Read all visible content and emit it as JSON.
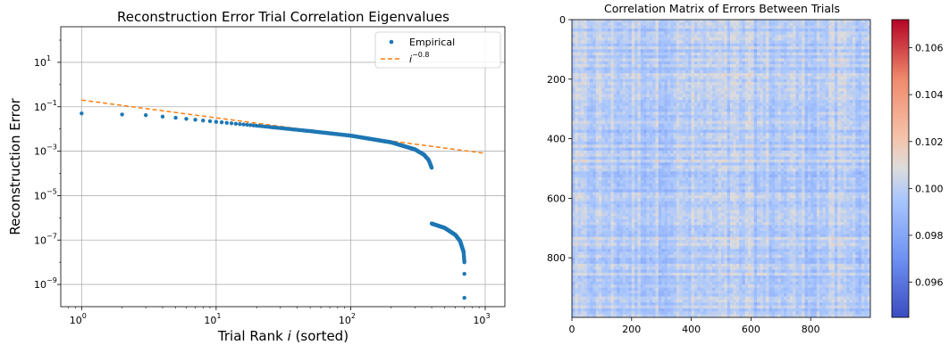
{
  "chart_data": [
    {
      "type": "scatter",
      "title": "Reconstruction Error Trial Correlation Eigenvalues",
      "xlabel": "Trial Rank",
      "xlabel_var": "i",
      "xlabel_suffix": "(sorted)",
      "ylabel": "Reconstruction Error",
      "xscale": "log",
      "yscale": "log",
      "xlim": [
        0.7,
        1400
      ],
      "ylim": [
        1e-10,
        400.0
      ],
      "x_tick_values": [
        1,
        10,
        100,
        1000
      ],
      "y_tick_values": [
        1e-09,
        1e-07,
        1e-05,
        0.001,
        0.1,
        10.0
      ],
      "x_tick_labels": [
        {
          "base": "10",
          "exp": "0"
        },
        {
          "base": "10",
          "exp": "1"
        },
        {
          "base": "10",
          "exp": "2"
        },
        {
          "base": "10",
          "exp": "3"
        }
      ],
      "y_tick_labels": [
        {
          "base": "10",
          "exp": "−9"
        },
        {
          "base": "10",
          "exp": "−7"
        },
        {
          "base": "10",
          "exp": "−5"
        },
        {
          "base": "10",
          "exp": "−3"
        },
        {
          "base": "10",
          "exp": "−1"
        },
        {
          "base": "10",
          "exp": "1"
        }
      ],
      "grid": true,
      "legend_position": "top-right",
      "series": [
        {
          "name": "Empirical",
          "style": "points",
          "color": "#1f77b4",
          "segments": [
            {
              "x_start": 1,
              "x_end": 400,
              "y_anchors": [
                [
                  1,
                  0.05
                ],
                [
                  2,
                  0.045
                ],
                [
                  3,
                  0.042
                ],
                [
                  5,
                  0.032
                ],
                [
                  10,
                  0.021
                ],
                [
                  20,
                  0.014
                ],
                [
                  50,
                  0.008
                ],
                [
                  100,
                  0.005
                ],
                [
                  200,
                  0.0025
                ],
                [
                  300,
                  0.0012
                ],
                [
                  350,
                  0.0007
                ],
                [
                  380,
                  0.0004
                ],
                [
                  400,
                  0.00018
                ]
              ]
            },
            {
              "x_start": 400,
              "x_end": 700,
              "y_anchors": [
                [
                  400,
                  5.5e-07
                ],
                [
                  500,
                  3.5e-07
                ],
                [
                  600,
                  1.7e-07
                ],
                [
                  650,
                  9e-08
                ],
                [
                  690,
                  3e-08
                ],
                [
                  700,
                  1e-08
                ]
              ]
            }
          ],
          "outliers": [
            [
              700,
              3e-09
            ],
            [
              700,
              2.5e-10
            ]
          ]
        },
        {
          "name": "i^−0.8",
          "legend_base": "i",
          "legend_exp": "−0.8",
          "style": "dashed",
          "color": "#ff7f0e",
          "coef": 0.2,
          "exponent": -0.8,
          "x_range": [
            1,
            1000
          ]
        }
      ]
    },
    {
      "type": "heatmap",
      "title": "Correlation Matrix of Errors Between Trials",
      "size": 1000,
      "x_ticks": [
        "0",
        "200",
        "400",
        "600",
        "800"
      ],
      "y_ticks": [
        "0",
        "200",
        "400",
        "600",
        "800"
      ],
      "tick_values": [
        0,
        200,
        400,
        600,
        800
      ],
      "colormap": "coolwarm",
      "value_range": [
        0.0945,
        0.1072
      ],
      "colorbar_ticks": [
        "0.096",
        "0.098",
        "0.100",
        "0.102",
        "0.104",
        "0.106"
      ],
      "colorbar_tick_values": [
        0.096,
        0.098,
        0.1,
        0.102,
        0.104,
        0.106
      ],
      "typical_value_range": [
        0.0985,
        0.1012
      ]
    }
  ]
}
